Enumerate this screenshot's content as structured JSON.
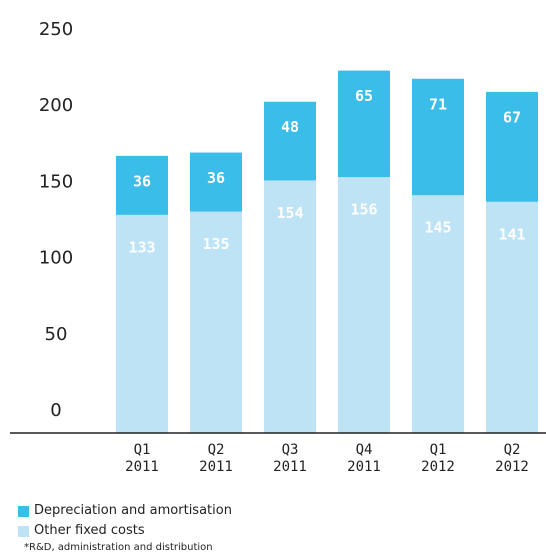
{
  "chart_data": {
    "type": "stacked_bar",
    "categories": [
      "Q1 2011",
      "Q2 2011",
      "Q3 2011",
      "Q4 2011",
      "Q1 2012",
      "Q2 2012"
    ],
    "series": [
      {
        "name": "Depreciation and amortisation",
        "color": "#3bbde9",
        "values": [
          36,
          36,
          48,
          65,
          71,
          67
        ]
      },
      {
        "name": "Other fixed costs",
        "color": "#bde3f5",
        "values": [
          133,
          135,
          154,
          156,
          145,
          141
        ]
      }
    ],
    "ylim": [
      0,
      250
    ],
    "yticks": [
      0,
      50,
      100,
      150,
      200,
      250
    ],
    "grid": false,
    "footnote": "*R&D, administration and distribution"
  }
}
